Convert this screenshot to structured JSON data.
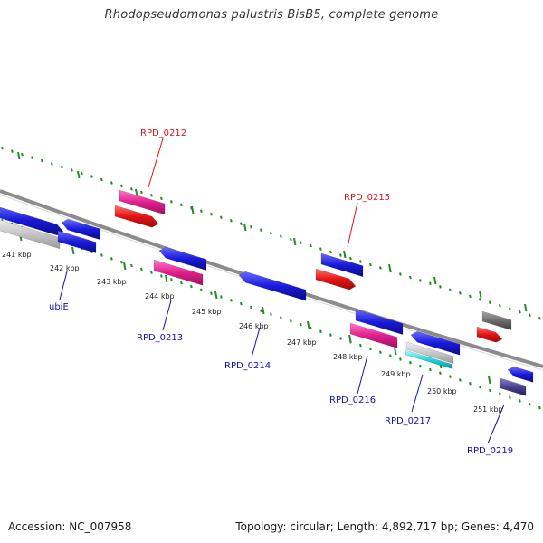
{
  "title": "Rhodopseudomonas palustris BisB5, complete genome",
  "accession": "Accession: NC_007958",
  "topology": "Topology: circular; Length: 4,892,717 bp; Genes: 4,470",
  "colors": {
    "background": "#ffffff",
    "backbone": "#8c8c8c",
    "tick": "#1e8c1e",
    "blue_gene": "#1a1adc",
    "pink_gene": "#e0208c",
    "red_gene": "#e61414",
    "gray_gene": "#6e6e6e",
    "lightgray_gene": "#c8c8c8",
    "cyan_gene": "#20d8e0",
    "navy_gene": "#4a4090",
    "label_red": "#dc1414",
    "label_blue": "#1010b4"
  },
  "scale_labels": [
    "241 kbp",
    "242 kbp",
    "243 kbp",
    "244 kbp",
    "245 kbp",
    "246 kbp",
    "247 kbp",
    "248 kbp",
    "249 kbp",
    "250 kbp",
    "251 kbp"
  ],
  "gene_labels": [
    {
      "text": "RPD_0212",
      "color": "red"
    },
    {
      "text": "RPD_0215",
      "color": "red"
    },
    {
      "text": "ubiE",
      "color": "blue"
    },
    {
      "text": "RPD_0213",
      "color": "blue"
    },
    {
      "text": "RPD_0214",
      "color": "blue"
    },
    {
      "text": "RPD_0216",
      "color": "blue"
    },
    {
      "text": "RPD_0217",
      "color": "blue"
    },
    {
      "text": "RPD_0219",
      "color": "blue"
    }
  ]
}
